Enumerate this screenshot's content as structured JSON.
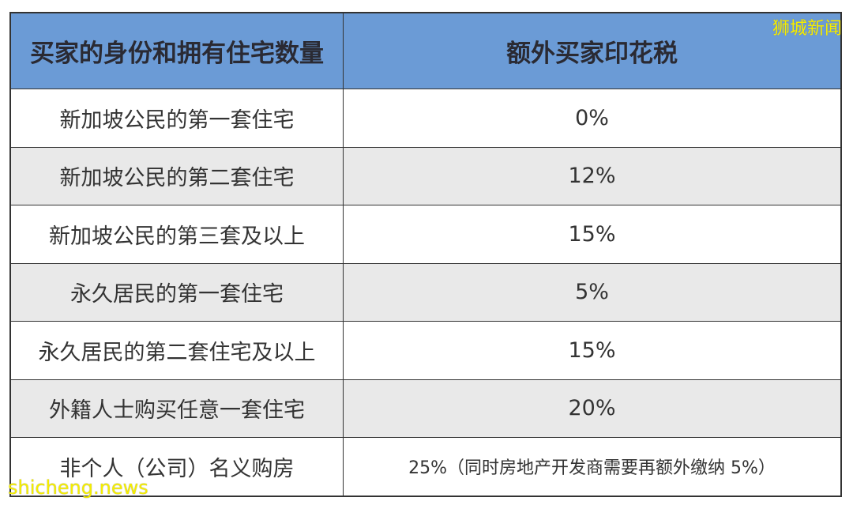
{
  "watermarks": {
    "top": "狮城新闻",
    "bottom": "shicheng.news"
  },
  "table": {
    "headers": [
      "买家的身份和拥有住宅数量",
      "额外买家印花税"
    ],
    "rows": [
      [
        "新加坡公民的第一套住宅",
        "0%"
      ],
      [
        "新加坡公民的第二套住宅",
        "12%"
      ],
      [
        "新加坡公民的第三套及以上",
        "15%"
      ],
      [
        "永久居民的第一套住宅",
        "5%"
      ],
      [
        "永久居民的第二套住宅及以上",
        "15%"
      ],
      [
        "外籍人士购买任意一套住宅",
        "20%"
      ],
      [
        "非个人（公司）名义购房",
        "25%（同时房地产开发商需要再额外缴纳 5%）"
      ]
    ]
  },
  "colors": {
    "header": "#6b9bd6",
    "alt_row": "#e9e9e9",
    "watermark": "#f5ee00"
  }
}
